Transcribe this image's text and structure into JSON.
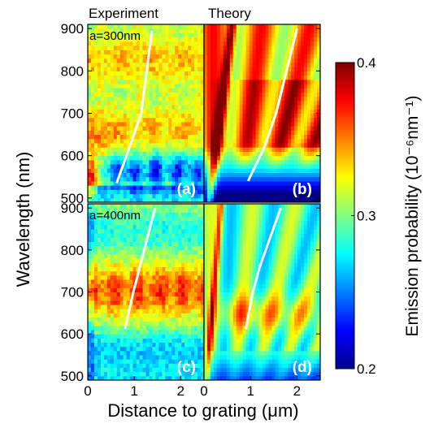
{
  "chart_data": {
    "type": "heatmap",
    "column_titles": [
      "Experiment",
      "Theory"
    ],
    "xlabel": "Distance to grating (μm)",
    "ylabel": "Wavelength (nm)",
    "xlim": [
      0,
      2.5
    ],
    "ylim": [
      490,
      910
    ],
    "x_ticks": [
      0,
      1,
      2
    ],
    "x_tick_labels": [
      "0",
      "1",
      "2"
    ],
    "y_ticks": [
      500,
      600,
      700,
      800,
      900
    ],
    "y_tick_labels": [
      "500",
      "600",
      "700",
      "800",
      "900"
    ],
    "colorbar": {
      "label": "Emission probability (10⁻⁶nm⁻¹)",
      "min": 0.2,
      "max": 0.4,
      "ticks": [
        0.2,
        0.3,
        0.4
      ],
      "tick_labels": [
        "0.2",
        "0.3",
        "0.4"
      ],
      "colormap": "jet"
    },
    "panels": [
      {
        "id": "a",
        "label": "(a)",
        "kind": "experiment",
        "period_label": "a=300nm",
        "white_curve": {
          "x": [
            0.62,
            0.9,
            1.15,
            1.38
          ],
          "y": [
            535,
            620,
            700,
            895
          ]
        }
      },
      {
        "id": "b",
        "label": "(b)",
        "kind": "theory",
        "period_label": "",
        "white_curve": {
          "x": [
            0.95,
            1.3,
            1.55,
            2.0
          ],
          "y": [
            540,
            620,
            700,
            900
          ]
        }
      },
      {
        "id": "c",
        "label": "(c)",
        "kind": "experiment",
        "period_label": "a=400nm",
        "white_curve": {
          "x": [
            0.8,
            0.98,
            1.12,
            1.45
          ],
          "y": [
            612,
            700,
            760,
            900
          ]
        }
      },
      {
        "id": "d",
        "label": "(d)",
        "kind": "theory",
        "period_label": "",
        "white_curve": {
          "x": [
            0.9,
            1.05,
            1.2,
            1.65
          ],
          "y": [
            612,
            700,
            760,
            900
          ]
        }
      }
    ]
  }
}
